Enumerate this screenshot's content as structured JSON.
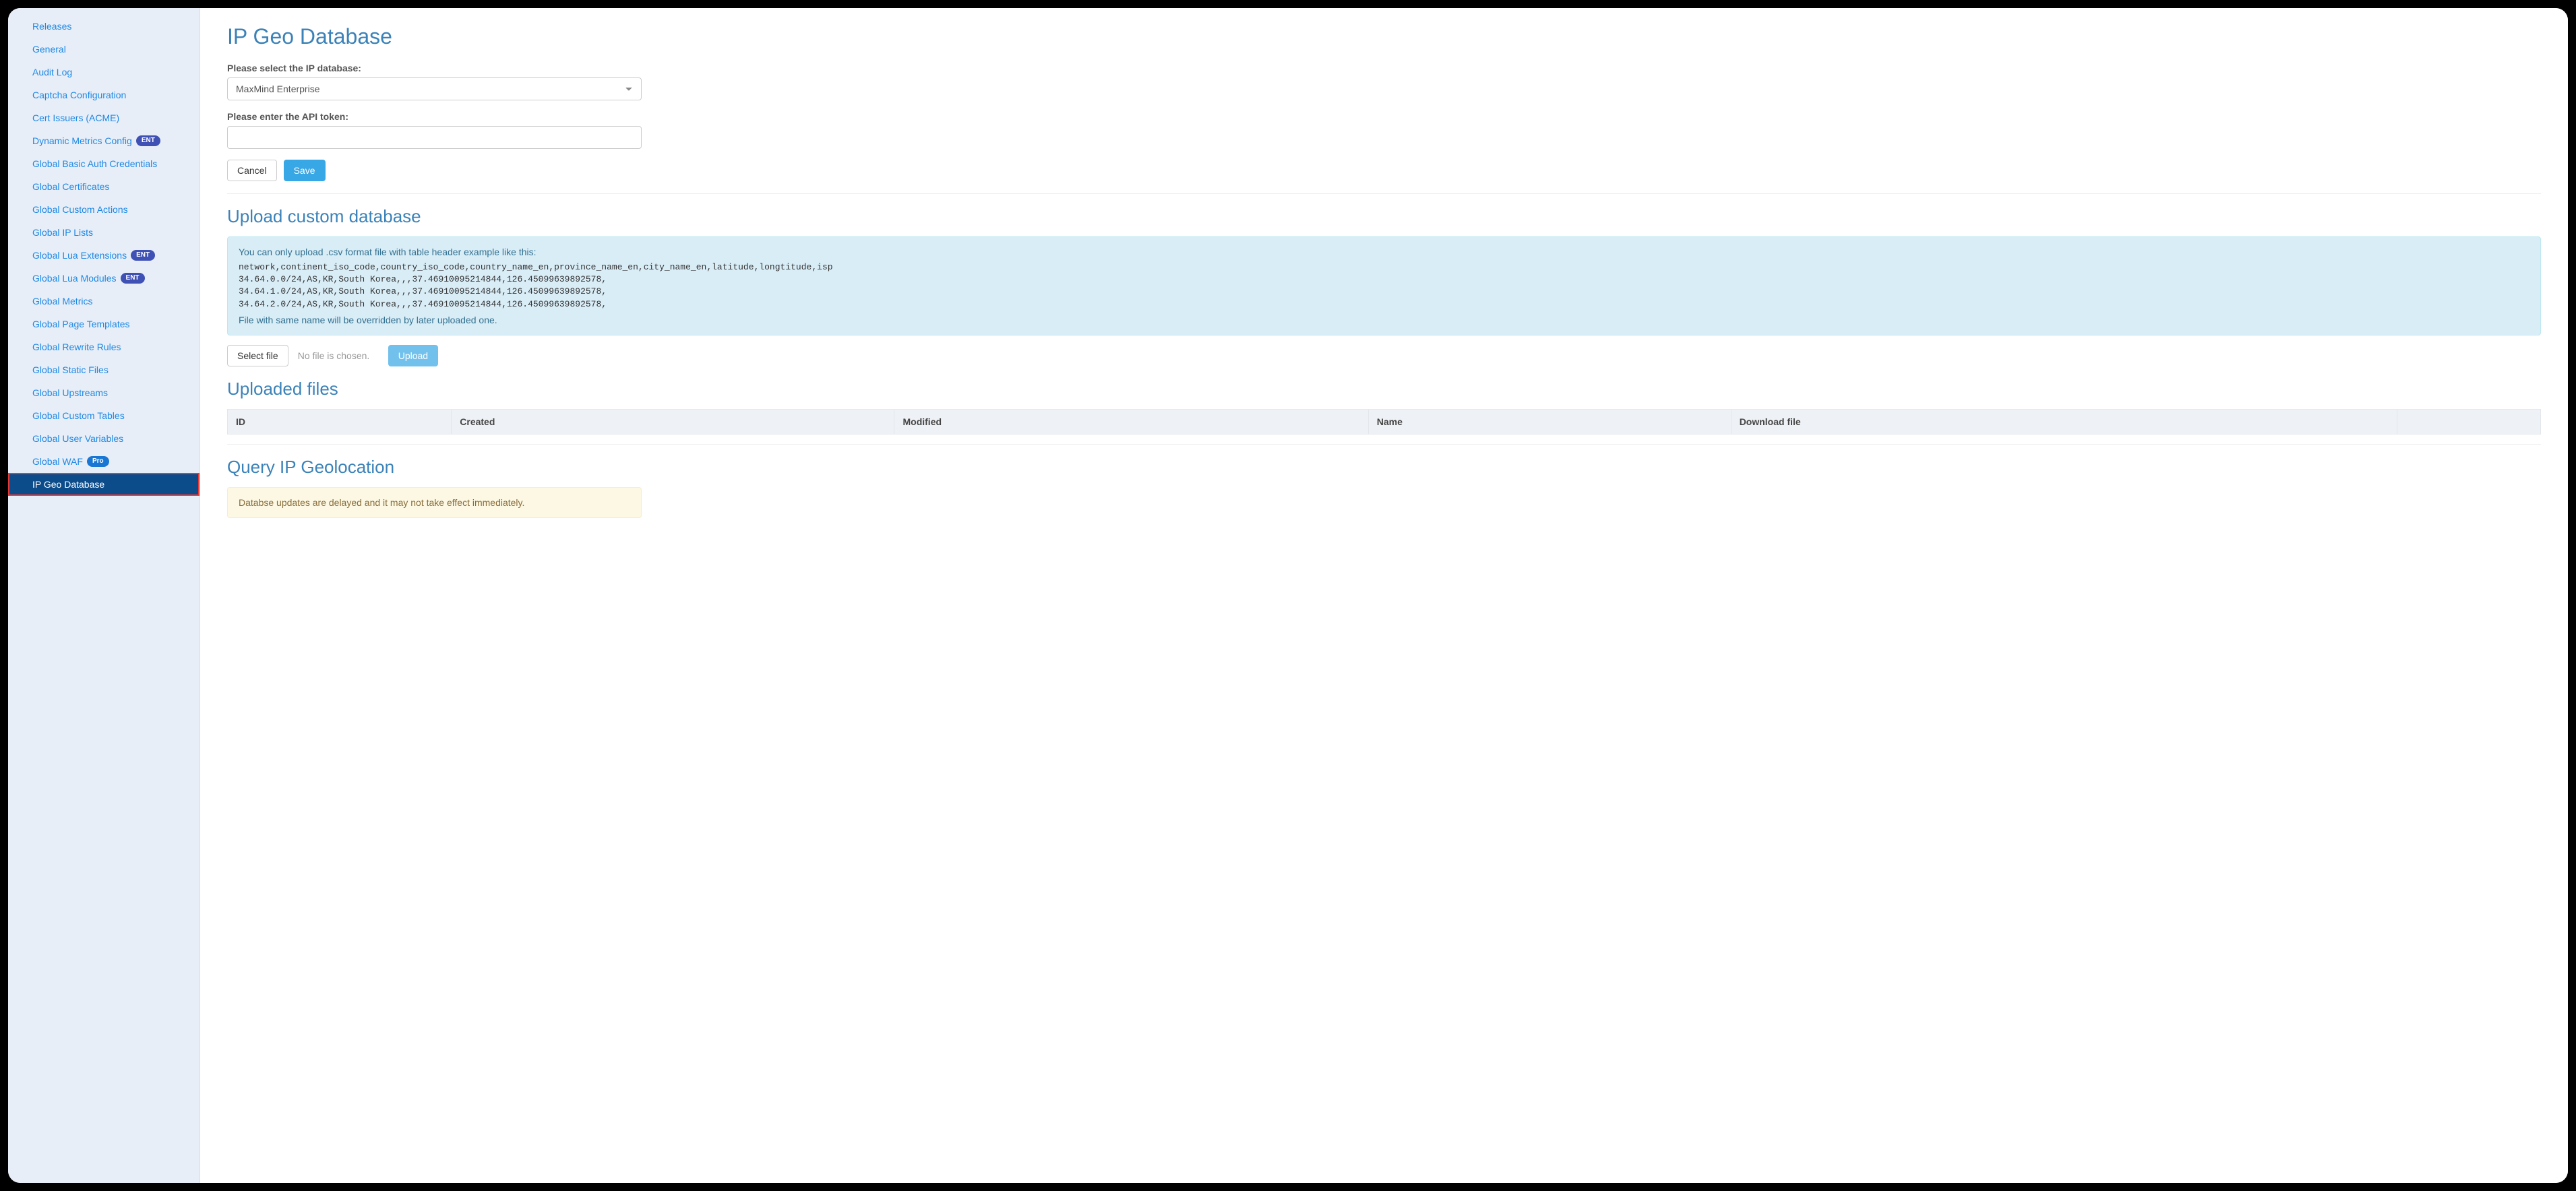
{
  "colors": {
    "sidebar_bg": "#e7eef7",
    "link": "#1e88e5",
    "active_bg": "#0d4c8a",
    "active_outline": "#e53935",
    "heading": "#3b82b8",
    "primary_btn": "#37a7e5",
    "info_bg": "#d9edf7",
    "info_border": "#bce8f1",
    "info_text": "#31708f",
    "warn_bg": "#fcf8e3",
    "warn_border": "#faebcc",
    "warn_text": "#8a6d3b",
    "ent_badge": "#3f51b5",
    "pro_badge": "#1976d2"
  },
  "sidebar": {
    "items": [
      {
        "label": "Releases",
        "badge": null
      },
      {
        "label": "General",
        "badge": null
      },
      {
        "label": "Audit Log",
        "badge": null
      },
      {
        "label": "Captcha Configuration",
        "badge": null
      },
      {
        "label": "Cert Issuers (ACME)",
        "badge": null
      },
      {
        "label": "Dynamic Metrics Config",
        "badge": "ENT"
      },
      {
        "label": "Global Basic Auth Credentials",
        "badge": null
      },
      {
        "label": "Global Certificates",
        "badge": null
      },
      {
        "label": "Global Custom Actions",
        "badge": null
      },
      {
        "label": "Global IP Lists",
        "badge": null
      },
      {
        "label": "Global Lua Extensions",
        "badge": "ENT"
      },
      {
        "label": "Global Lua Modules",
        "badge": "ENT"
      },
      {
        "label": "Global Metrics",
        "badge": null
      },
      {
        "label": "Global Page Templates",
        "badge": null
      },
      {
        "label": "Global Rewrite Rules",
        "badge": null
      },
      {
        "label": "Global Static Files",
        "badge": null
      },
      {
        "label": "Global Upstreams",
        "badge": null
      },
      {
        "label": "Global Custom Tables",
        "badge": null
      },
      {
        "label": "Global User Variables",
        "badge": null
      },
      {
        "label": "Global WAF",
        "badge": "Pro"
      },
      {
        "label": "IP Geo Database",
        "badge": null,
        "active": true
      }
    ]
  },
  "page": {
    "title": "IP Geo Database",
    "db_select_label": "Please select the IP database:",
    "db_select_value": "MaxMind Enterprise",
    "api_token_label": "Please enter the API token:",
    "api_token_value": "",
    "cancel": "Cancel",
    "save": "Save"
  },
  "upload": {
    "heading": "Upload custom database",
    "info_intro": "You can only upload .csv format file with table header example like this:",
    "info_example": "network,continent_iso_code,country_iso_code,country_name_en,province_name_en,city_name_en,latitude,longtitude,isp\n34.64.0.0/24,AS,KR,South Korea,,,37.46910095214844,126.45099639892578,\n34.64.1.0/24,AS,KR,South Korea,,,37.46910095214844,126.45099639892578,\n34.64.2.0/24,AS,KR,South Korea,,,37.46910095214844,126.45099639892578,",
    "info_note": "File with same name will be overridden by later uploaded one.",
    "select_file": "Select file",
    "no_file": "No file is chosen.",
    "upload_btn": "Upload"
  },
  "uploaded": {
    "heading": "Uploaded files",
    "columns": [
      "ID",
      "Created",
      "Modified",
      "Name",
      "Download file",
      ""
    ],
    "rows": []
  },
  "query": {
    "heading": "Query IP Geolocation",
    "warning": "Databse updates are delayed and it may not take effect immediately."
  }
}
